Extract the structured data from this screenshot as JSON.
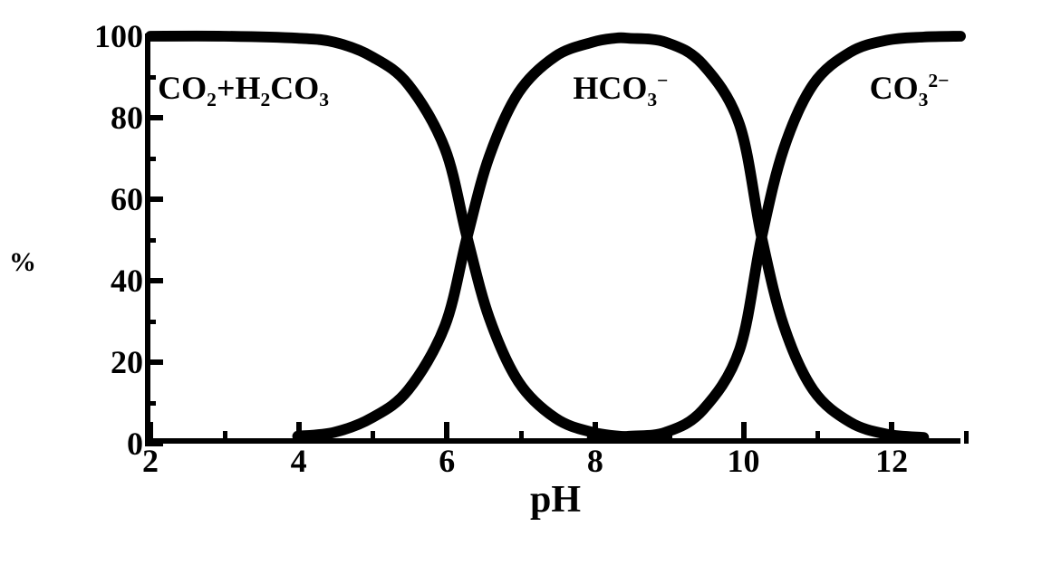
{
  "chart": {
    "type": "line",
    "title": null,
    "xlabel": "pH",
    "ylabel": "%",
    "xlim": [
      2,
      13
    ],
    "ylim": [
      0,
      100
    ],
    "xtick_major": [
      2,
      4,
      6,
      8,
      10,
      12
    ],
    "xtick_minor": [
      3,
      5,
      7,
      9,
      11,
      13
    ],
    "ytick_major": [
      0,
      20,
      40,
      60,
      80,
      100
    ],
    "ytick_minor": [
      10,
      30,
      50,
      70,
      90
    ],
    "label_fontsize": 42,
    "tick_fontsize": 36,
    "series_label_fontsize": 36,
    "line_color": "#000000",
    "line_width": 12,
    "border_width": 6,
    "background_color": "#ffffff",
    "series": [
      {
        "name": "CO2+H2CO3",
        "label_html": "CO<sub>2</sub>+H<sub>2</sub>CO<sub>3</sub>",
        "label_x": 2.1,
        "label_y": 88,
        "color": "#000000",
        "points": [
          [
            2,
            100
          ],
          [
            3,
            100
          ],
          [
            4,
            99.5
          ],
          [
            4.5,
            98.5
          ],
          [
            5,
            95
          ],
          [
            5.5,
            88
          ],
          [
            6,
            72
          ],
          [
            6.3,
            50
          ],
          [
            6.6,
            30
          ],
          [
            7,
            14
          ],
          [
            7.5,
            5
          ],
          [
            8,
            1.5
          ],
          [
            8.5,
            0.3
          ],
          [
            9,
            0
          ]
        ]
      },
      {
        "name": "HCO3-",
        "label_html": "HCO<sub>3</sub><sup>−</sup>",
        "label_x": 7.7,
        "label_y": 88,
        "color": "#000000",
        "points": [
          [
            4,
            0.5
          ],
          [
            4.5,
            1.5
          ],
          [
            5,
            5
          ],
          [
            5.5,
            12
          ],
          [
            6,
            28
          ],
          [
            6.3,
            50
          ],
          [
            6.6,
            70
          ],
          [
            7,
            86
          ],
          [
            7.5,
            95
          ],
          [
            8,
            98.5
          ],
          [
            8.3,
            99.5
          ],
          [
            8.5,
            99.5
          ],
          [
            9,
            98.5
          ],
          [
            9.5,
            93
          ],
          [
            10,
            78
          ],
          [
            10.3,
            50
          ],
          [
            10.6,
            28
          ],
          [
            11,
            12
          ],
          [
            11.5,
            4
          ],
          [
            12,
            1
          ],
          [
            12.5,
            0.2
          ]
        ]
      },
      {
        "name": "CO3_2-",
        "label_html": "CO<sub>3</sub><sup>2−</sup>",
        "label_x": 11.7,
        "label_y": 88,
        "color": "#000000",
        "points": [
          [
            8,
            0
          ],
          [
            8.5,
            0.5
          ],
          [
            9,
            1.5
          ],
          [
            9.5,
            7
          ],
          [
            10,
            22
          ],
          [
            10.3,
            50
          ],
          [
            10.6,
            72
          ],
          [
            11,
            88
          ],
          [
            11.5,
            96
          ],
          [
            12,
            99
          ],
          [
            12.5,
            99.8
          ],
          [
            13,
            100
          ]
        ]
      }
    ]
  }
}
